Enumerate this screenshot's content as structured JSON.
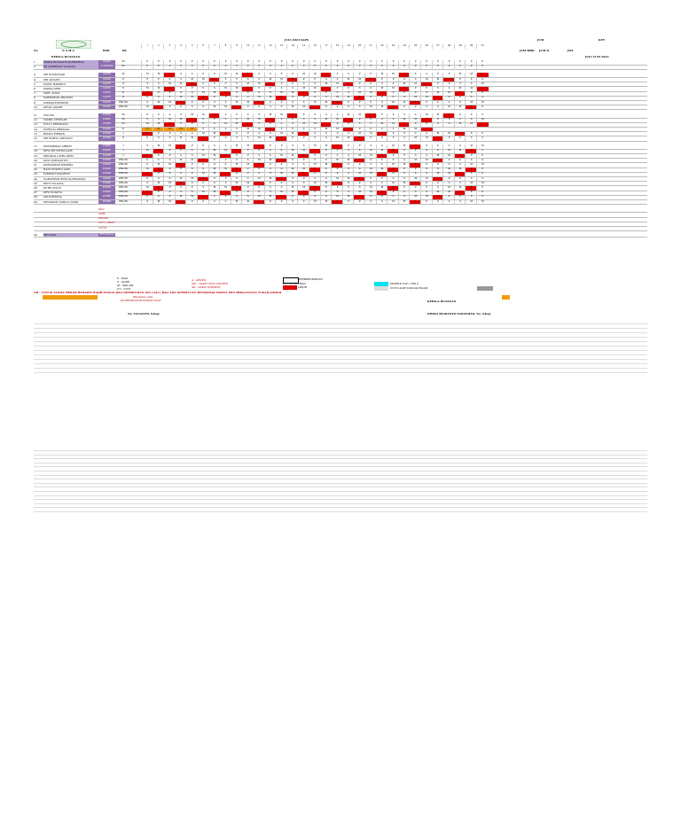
{
  "header": {
    "month_title": "JULI 2023 SAPS",
    "right_col_jum": "JUM",
    "right_col_ket": "KET",
    "col_no": "No",
    "col_nama": "N A M A",
    "col_pdd": "PDD",
    "col_pk": "PK",
    "col_jam_mbd": "JAM MBD",
    "col_jumd": "JUM D",
    "col_jml": "JML",
    "right_note": "JULI CUTI 2023",
    "kepala_label": "KEPALA RUANGAN"
  },
  "days": [
    "1",
    "2",
    "3",
    "4",
    "5",
    "6",
    "7",
    "8",
    "9",
    "10",
    "11",
    "12",
    "13",
    "14",
    "15",
    "16",
    "17",
    "18",
    "19",
    "20",
    "21",
    "22",
    "23",
    "24",
    "25",
    "26",
    "27",
    "28",
    "29",
    "30",
    "31"
  ],
  "groups": [
    {
      "rows": [
        {
          "no": "1",
          "name": "DWIKA BUDIANTO SURATMAN",
          "role": "S1KEP",
          "pk": "III",
          "shifts": "PPPPPPPPPPPPPPPPPPPPPPPPPPPPPPP"
        },
        {
          "no": "2",
          "name": "RR ANDRIYATI YULIANA",
          "role": "S1KEP/NS",
          "pk": "III",
          "shifts": "PPPPPPPPPPPPPPPPPPPPPPPPPPPPPPP"
        }
      ]
    },
    {
      "rows": [
        {
          "no": "3",
          "name": "SRI HANDAYANI",
          "role": "S1KEP",
          "pk": "III",
          "shifts": "MMLSSPPMMLSSPPMMLSSPPMMLSSPPMML"
        },
        {
          "no": "4",
          "name": "SRI ANIATIN",
          "role": "S1KEP",
          "pk": "II",
          "shifts": "PPSSMMLPPSSMMLPPSSMMLPPSSMMLPPS"
        },
        {
          "no": "5",
          "name": "WIWIT HARMINI",
          "role": "S1KEP",
          "pk": "II",
          "shifts": "SSMMLPPSSMMLPPSSMMLPPSSMMLPPSSM"
        },
        {
          "no": "6",
          "name": "PUJIKA DEWI",
          "role": "S1KEP",
          "pk": "II",
          "shifts": "MMLPPSSMMLPPSSMMLPPSSMMLPPSSMML"
        },
        {
          "no": "7",
          "name": "MOH. ALIKA",
          "role": "S1KEP",
          "pk": "II",
          "shifts": "LPPSSMMLPPSSMMLPPSSMMLPPSSMMLPP"
        },
        {
          "no": "8",
          "name": "DARMAWAN ARDIANS",
          "role": "S1KEP",
          "pk": "II",
          "shifts": "PSSMMLPPSSMMLPPSSMMLPPSSMMLPPSS"
        },
        {
          "no": "9",
          "name": "SAMSULFATHIYAH",
          "role": "S1KEP",
          "pk": "PRA PK",
          "shifts": "SMMLPPSSMMLPPSSMMLPPSSMMLPPSSMM"
        },
        {
          "no": "10",
          "name": "DEVAT ANDRE",
          "role": "S1KEP",
          "pk": "PRA PK",
          "shifts": "MLPPSSMMLPPSSMMLPPSSMMLPPSSMMLP"
        }
      ]
    },
    {
      "rows": [
        {
          "no": "11",
          "name": "YAYUNG",
          "role": "D3KEP",
          "pk": "III",
          "shifts": "PPSSMMLPPSSMMLPPSSMMLPPSSMMLPPS"
        },
        {
          "no": "12",
          "name": "YASMIL DEWILAR",
          "role": "D3KEP",
          "pk": "III",
          "shifts": "SSMMLPPSSMMLPPSSMMLPPSSMMLPPSSM"
        },
        {
          "no": "13",
          "name": "FULLY KRISDIANA",
          "role": "D3KEP",
          "pk": "III",
          "shifts": "MMLPPSSMMLPPSSMMLPPSSMMLPPSSMML"
        },
        {
          "no": "14",
          "name": "PURWITA PRIMAYAI",
          "role": "D3KEP",
          "pk": "II",
          "shifts": "CTCTCTCTCTPPSSMMLPPSSMMLPPSSMML"
        },
        {
          "no": "15",
          "name": "RIZANI FIRMAN",
          "role": "D3KEP",
          "pk": "I",
          "shifts": "LPPSSMMLPPSSMMLPPSSMMLPPSSMMLPP"
        },
        {
          "no": "16",
          "name": "SRI WAHYU ARIYANTI",
          "role": "D3KEP",
          "pk": "II",
          "shifts": "PSSMMLPPSSMMLPPSSMMLPPSSMMLPPSS"
        }
      ]
    },
    {
      "rows": [
        {
          "no": "17",
          "name": "MUHAMMAD ARRAFI",
          "role": "D3KEP",
          "pk": "I",
          "shifts": "SMMLPPSSMMLPPSSMMLPPSSMMLPPSSMM"
        },
        {
          "no": "18",
          "name": "DEVI SRI FATMA SARI",
          "role": "D3KEP",
          "pk": "I",
          "shifts": "MLPPSSMMLPPSSMMLPPSSMMLPPSSMMLP"
        },
        {
          "no": "19",
          "name": "MELINDA CITRA DEWI",
          "role": "D3KEP",
          "pk": "I",
          "shifts": "LPPSSMMLPPSSMMLPPSSMMLPPSSMMLPP"
        },
        {
          "no": "20",
          "name": "SUSY WIDYASTUTI",
          "role": "D3KEP",
          "pk": "PRA PK",
          "shifts": "PSSMMLPPSSMMLPPSSMMLPPSSMMLPPSS"
        },
        {
          "no": "21",
          "name": "KURNIAWAN HENDRA",
          "role": "D3KEP",
          "pk": "PRA PK",
          "shifts": "SMMLPPSSMMLPPSSMMLPPSSMMLPPSSMM"
        },
        {
          "no": "22",
          "name": "HANI PUSPITA SARI",
          "role": "D3KEP",
          "pk": "PRA PK",
          "shifts": "MLPPSSMMLPPSSMMLPPSSMMLPPSSMMLP"
        },
        {
          "no": "23",
          "name": "FARIDAH DANARINI",
          "role": "D3KEP",
          "pk": "PRA PK",
          "shifts": "LPPSSMMLPPSSMMLPPSSMMLPPSSMMLPP"
        },
        {
          "no": "24",
          "name": "NURAFIFAH DEWI KURNIAWATI",
          "role": "D3KEP",
          "pk": "PRA PK",
          "shifts": "PSSMMLPPSSMMLPPSSMMLPPSSMMLPPSS"
        },
        {
          "no": "25",
          "name": "RISTI YULIANA",
          "role": "D3KEP",
          "pk": "PRA PK",
          "shifts": "SMMLPPSSMMLPPSSMMLPPSSMMLPPSSMM"
        },
        {
          "no": "26",
          "name": "PUTRI AYUNI",
          "role": "D3KEP",
          "pk": "PRA PK",
          "shifts": "MLPPSSMMLPPSSMMLPPSSMMLPPSSMMLP"
        },
        {
          "no": "27",
          "name": "DEVI PUSPITA",
          "role": "D3KEP",
          "pk": "PRA PK",
          "shifts": "LPPSSMMLPPSSMMLPPSSMMLPPSSMMLPP"
        },
        {
          "no": "28",
          "name": "AGUS RIYANA",
          "role": "D3KEP",
          "pk": "PRA PK",
          "shifts": "PSSMMLPPSSMMLPPSSMMLPPSSMMLPPSS"
        },
        {
          "no": "29",
          "name": "SETIAWATI NURUL UTAMI",
          "role": "D3KEP",
          "pk": "PRA PK",
          "shifts": "SMMLPPSSMMLPPSSMMLPPSSMMLPPSSMM"
        }
      ]
    }
  ],
  "summary_rows": [
    "PAGI",
    "SORE",
    "MALAM",
    "CUTI / LIBUR",
    "CT/CTI"
  ],
  "last_row": {
    "no": "30",
    "name": "SITI YASA",
    "role": "PENGAWAS"
  },
  "legend": {
    "col1": [
      "P : PAGI",
      "S : SORE",
      "M : MALAM",
      "CT : CUTI"
    ],
    "col2": [
      "A : ABSEN",
      "SID : SAKIT IZIN DOKTER",
      "SD : SAKIT DIRAWAT"
    ],
    "col3": [
      "BERBEROMPUAN",
      "PR : PELATIHAN",
      "LIBUR"
    ],
    "col4": [
      "MOBILE IGP / TIM 2",
      "CUTI LUAR TANGGUNGAN"
    ],
    "note": "NB : UNTUK TANDA MERAH BERARTI WAJIB MASUK JIKA DIPERLUKAN (ON CALL) JIKA ADA KEPERLUAN MENDADAK HARUS IZIN BERGANTIAN TUKAR JADWAL",
    "approved_by": "Diketahui oleh,",
    "coordinator": "KOORDINATOR RAWAT INAP",
    "kepala_ruangan": "KEPALA RUANGAN",
    "sign_left": "Ns. YULIANTY, S.Kep",
    "sign_right": "DWIKA BUDIANTO SURATMAN, Ns, S.Kep"
  },
  "colors": {
    "P": "#ffffff",
    "S": "#ffffff",
    "M": "#ffffff",
    "L": "#e00000",
    "CT": "#f39c12",
    "SID": "#d400d4",
    "MOB": "#00e5ee",
    "purple": "#8e6fb0",
    "gray": "#999999"
  }
}
